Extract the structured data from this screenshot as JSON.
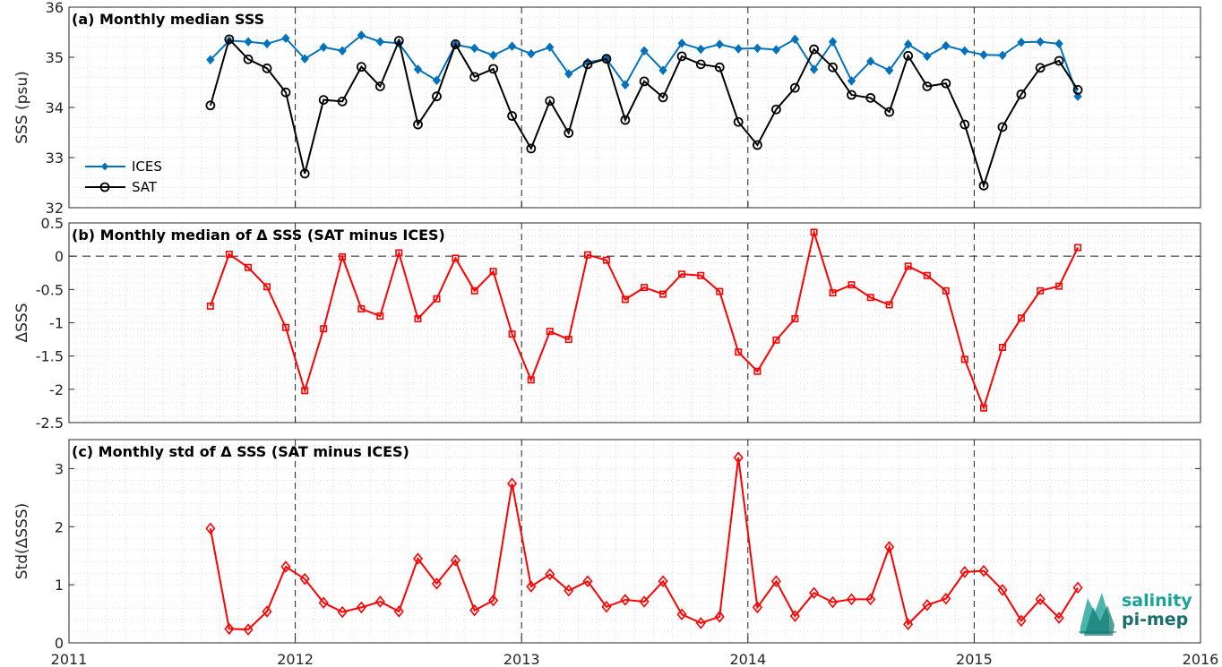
{
  "chart_data": [
    {
      "panel": "a",
      "type": "line",
      "title": "(a) Monthly median SSS",
      "ylabel": "SSS (psu)",
      "xlim": [
        2011,
        2016
      ],
      "ylim": [
        32,
        36
      ],
      "yticks": [
        32,
        33,
        34,
        35,
        36
      ],
      "grid": true,
      "legend_position": "bottom-left",
      "series": [
        {
          "name": "ICES",
          "color": "#0072bd",
          "marker": "diamond-filled",
          "x": [
            2011.625,
            2011.708,
            2011.792,
            2011.875,
            2011.958,
            2012.042,
            2012.125,
            2012.208,
            2012.292,
            2012.375,
            2012.458,
            2012.542,
            2012.625,
            2012.708,
            2012.792,
            2012.875,
            2012.958,
            2013.042,
            2013.125,
            2013.208,
            2013.292,
            2013.375,
            2013.458,
            2013.542,
            2013.625,
            2013.708,
            2013.792,
            2013.875,
            2013.958,
            2014.042,
            2014.125,
            2014.208,
            2014.292,
            2014.375,
            2014.458,
            2014.542,
            2014.625,
            2014.708,
            2014.792,
            2014.875,
            2014.958,
            2015.042,
            2015.125,
            2015.208,
            2015.292,
            2015.375,
            2015.458
          ],
          "values": [
            34.95,
            35.33,
            35.31,
            35.27,
            35.38,
            34.97,
            35.2,
            35.13,
            35.44,
            35.31,
            35.28,
            34.76,
            34.54,
            35.25,
            35.18,
            35.04,
            35.22,
            35.07,
            35.2,
            34.67,
            34.9,
            34.97,
            34.45,
            35.13,
            34.74,
            35.28,
            35.16,
            35.26,
            35.17,
            35.18,
            35.15,
            35.36,
            34.76,
            35.31,
            34.53,
            34.92,
            34.74,
            35.26,
            35.02,
            35.23,
            35.13,
            35.05,
            35.04,
            35.3,
            35.31,
            35.27,
            34.22
          ]
        },
        {
          "name": "SAT",
          "color": "#000000",
          "marker": "circle-open",
          "x": [
            2011.625,
            2011.708,
            2011.792,
            2011.875,
            2011.958,
            2012.042,
            2012.125,
            2012.208,
            2012.292,
            2012.375,
            2012.458,
            2012.542,
            2012.625,
            2012.708,
            2012.792,
            2012.875,
            2012.958,
            2013.042,
            2013.125,
            2013.208,
            2013.292,
            2013.375,
            2013.458,
            2013.542,
            2013.625,
            2013.708,
            2013.792,
            2013.875,
            2013.958,
            2014.042,
            2014.125,
            2014.208,
            2014.292,
            2014.375,
            2014.458,
            2014.542,
            2014.625,
            2014.708,
            2014.792,
            2014.875,
            2014.958,
            2015.042,
            2015.125,
            2015.208,
            2015.292,
            2015.375,
            2015.458
          ],
          "values": [
            34.04,
            35.36,
            34.96,
            34.78,
            34.3,
            32.68,
            34.15,
            34.12,
            34.81,
            34.42,
            35.33,
            33.66,
            34.22,
            35.26,
            34.61,
            34.77,
            33.83,
            33.18,
            34.13,
            33.49,
            34.86,
            34.97,
            33.75,
            34.52,
            34.2,
            35.02,
            34.86,
            34.8,
            33.71,
            33.25,
            33.96,
            34.39,
            35.16,
            34.8,
            34.25,
            34.19,
            33.91,
            35.03,
            34.42,
            34.48,
            33.66,
            32.44,
            33.61,
            34.26,
            34.79,
            34.93,
            34.35
          ]
        }
      ]
    },
    {
      "panel": "b",
      "type": "line",
      "title": "(b) Monthly median of Δ SSS (SAT minus ICES)",
      "ylabel": "ΔSSS",
      "xlim": [
        2011,
        2016
      ],
      "ylim": [
        -2.5,
        0.5
      ],
      "yticks": [
        -2.5,
        -2,
        -1.5,
        -1,
        -0.5,
        0,
        0.5
      ],
      "ytick_labels": [
        "-2.5",
        "-2",
        "-1.5",
        "-1",
        "-0.5",
        "0",
        "0.5"
      ],
      "zero_line": "dashed",
      "grid": true,
      "series": [
        {
          "color": "#ff0000",
          "marker": "square-open",
          "x": [
            2011.625,
            2011.708,
            2011.792,
            2011.875,
            2011.958,
            2012.042,
            2012.125,
            2012.208,
            2012.292,
            2012.375,
            2012.458,
            2012.542,
            2012.625,
            2012.708,
            2012.792,
            2012.875,
            2012.958,
            2013.042,
            2013.125,
            2013.208,
            2013.292,
            2013.375,
            2013.458,
            2013.542,
            2013.625,
            2013.708,
            2013.792,
            2013.875,
            2013.958,
            2014.042,
            2014.125,
            2014.208,
            2014.292,
            2014.375,
            2014.458,
            2014.542,
            2014.625,
            2014.708,
            2014.792,
            2014.875,
            2014.958,
            2015.042,
            2015.125,
            2015.208,
            2015.292,
            2015.375,
            2015.458
          ],
          "values": [
            -0.75,
            0.03,
            -0.17,
            -0.46,
            -1.07,
            -2.02,
            -1.09,
            -0.01,
            -0.79,
            -0.9,
            0.05,
            -0.94,
            -0.64,
            -0.03,
            -0.52,
            -0.23,
            -1.17,
            -1.86,
            -1.13,
            -1.25,
            0.02,
            -0.06,
            -0.65,
            -0.47,
            -0.57,
            -0.27,
            -0.29,
            -0.53,
            -1.44,
            -1.73,
            -1.26,
            -0.94,
            0.36,
            -0.55,
            -0.43,
            -0.62,
            -0.73,
            -0.15,
            -0.29,
            -0.52,
            -1.55,
            -2.28,
            -1.37,
            -0.93,
            -0.52,
            -0.45,
            0.13
          ]
        }
      ]
    },
    {
      "panel": "c",
      "type": "line",
      "title": "(c) Monthly std of Δ SSS (SAT minus ICES)",
      "ylabel": "Std(ΔSSS)",
      "xlim": [
        2011,
        2016
      ],
      "ylim": [
        0,
        3.5
      ],
      "yticks": [
        0,
        1,
        2,
        3
      ],
      "xticks": [
        2011,
        2012,
        2013,
        2014,
        2015,
        2016
      ],
      "xtick_labels": [
        "2011",
        "2012",
        "2013",
        "2014",
        "2015",
        "2016"
      ],
      "year_lines": "dashed",
      "grid": true,
      "series": [
        {
          "color": "#ff0000",
          "marker": "diamond-open",
          "x": [
            2011.625,
            2011.708,
            2011.792,
            2011.875,
            2011.958,
            2012.042,
            2012.125,
            2012.208,
            2012.292,
            2012.375,
            2012.458,
            2012.542,
            2012.625,
            2012.708,
            2012.792,
            2012.875,
            2012.958,
            2013.042,
            2013.125,
            2013.208,
            2013.292,
            2013.375,
            2013.458,
            2013.542,
            2013.625,
            2013.708,
            2013.792,
            2013.875,
            2013.958,
            2014.042,
            2014.125,
            2014.208,
            2014.292,
            2014.375,
            2014.458,
            2014.542,
            2014.625,
            2014.708,
            2014.792,
            2014.875,
            2014.958,
            2015.042,
            2015.125,
            2015.208,
            2015.292,
            2015.375,
            2015.458
          ],
          "values": [
            1.97,
            0.24,
            0.23,
            0.54,
            1.31,
            1.1,
            0.69,
            0.53,
            0.61,
            0.71,
            0.54,
            1.45,
            1.02,
            1.42,
            0.56,
            0.73,
            2.74,
            0.97,
            1.18,
            0.9,
            1.06,
            0.62,
            0.74,
            0.71,
            1.06,
            0.49,
            0.34,
            0.45,
            3.19,
            0.61,
            1.06,
            0.46,
            0.86,
            0.7,
            0.75,
            0.75,
            1.65,
            0.32,
            0.65,
            0.76,
            1.22,
            1.24,
            0.91,
            0.38,
            0.75,
            0.43,
            0.95
          ]
        }
      ]
    }
  ],
  "logo": {
    "line1": "salinity",
    "line2": "pi-mep"
  }
}
